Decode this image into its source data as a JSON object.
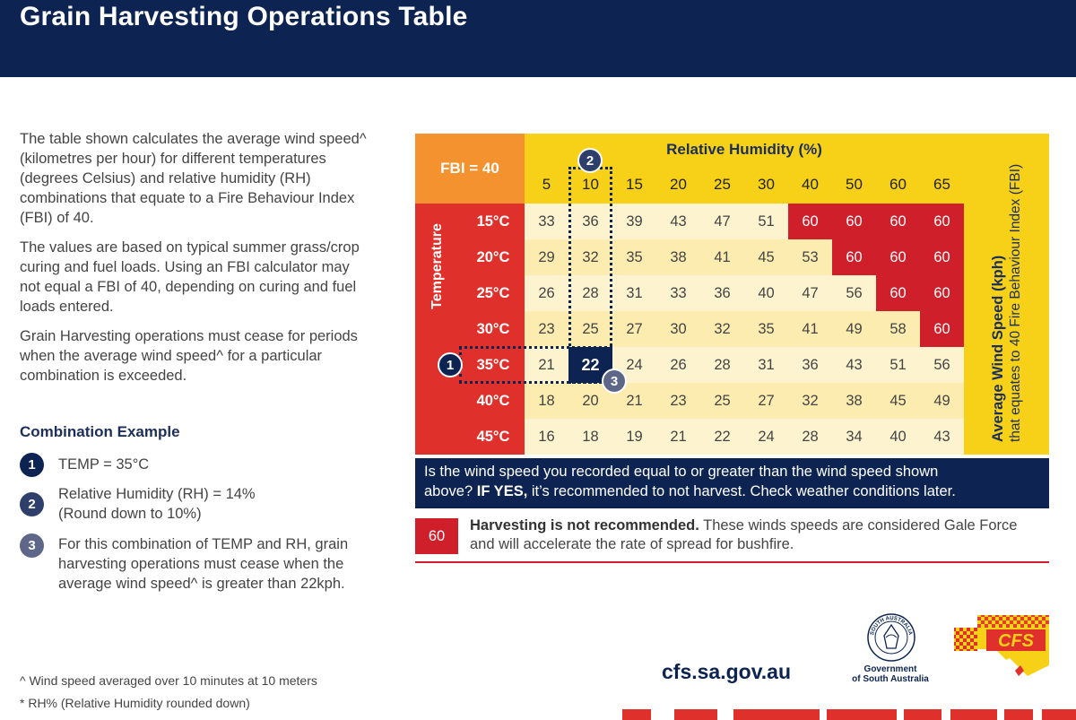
{
  "header": {
    "title": "Grain Harvesting Operations Table"
  },
  "intro": {
    "p1": "The table shown calculates the average wind speed^ (kilometres per hour) for different temperatures (degrees Celsius) and relative humidity (RH) combinations that equate to a Fire Behaviour Index (FBI) of 40.",
    "p2": "The values are based on typical summer grass/crop curing and fuel loads. Using an FBI calculator may not equal a FBI of 40, depending on curing and fuel loads entered.",
    "p3": "Grain Harvesting operations must cease for periods when the average wind speed^ for a particular combination is exceeded."
  },
  "combination": {
    "title": "Combination Example",
    "steps": [
      {
        "num": "1",
        "text": "TEMP = 35°C"
      },
      {
        "num": "2",
        "text": "Relative Humidity (RH) = 14% (Round down to 10%)"
      },
      {
        "num": "3",
        "text": "For this combination of TEMP and RH, grain harvesting operations must cease when the average wind speed^ is greater than 22kph."
      }
    ]
  },
  "footnotes": {
    "wind": "^ Wind speed averaged over 10 minutes at 10 meters",
    "rh": "* RH% (Relative Humidity rounded down)"
  },
  "table": {
    "fbi_label": "FBI = 40",
    "rh_title": "Relative Humidity (%)",
    "temp_title": "Temperature",
    "wind_title": "Average Wind Speed (kph)",
    "wind_subtitle": "that equates to 40 Fire Behaviour Index (FBI)",
    "rh_values": [
      "5",
      "10",
      "15",
      "20",
      "25",
      "30",
      "40",
      "50",
      "60",
      "65"
    ],
    "temperatures": [
      "15°C",
      "20°C",
      "25°C",
      "30°C",
      "35°C",
      "40°C",
      "45°C"
    ],
    "rows": [
      [
        "33",
        "36",
        "39",
        "43",
        "47",
        "51",
        "60",
        "60",
        "60",
        "60"
      ],
      [
        "29",
        "32",
        "35",
        "38",
        "41",
        "45",
        "53",
        "60",
        "60",
        "60"
      ],
      [
        "26",
        "28",
        "31",
        "33",
        "36",
        "40",
        "47",
        "56",
        "60",
        "60"
      ],
      [
        "23",
        "25",
        "27",
        "30",
        "32",
        "35",
        "41",
        "49",
        "58",
        "60"
      ],
      [
        "21",
        "22",
        "24",
        "26",
        "28",
        "31",
        "36",
        "43",
        "51",
        "56"
      ],
      [
        "18",
        "20",
        "21",
        "23",
        "25",
        "27",
        "32",
        "38",
        "45",
        "49"
      ],
      [
        "16",
        "18",
        "19",
        "21",
        "22",
        "24",
        "28",
        "34",
        "40",
        "43"
      ]
    ],
    "markers": [
      "1",
      "2",
      "3"
    ],
    "colors": {
      "gale": "#cf1f2b",
      "light": "#fdf3cf",
      "pale": "#fdecb0",
      "highlight": "#0d2452"
    }
  },
  "question": {
    "line1": "Is the wind speed you recorded equal to or greater than the wind speed shown",
    "line2_pre": "above?",
    "line2_bold": "IF YES,",
    "line2_post": "it’s recommended to not harvest. Check weather conditions later."
  },
  "legend": {
    "value": "60",
    "bold": "Harvesting is not recommended.",
    "text": "These winds speeds are considered Gale Force and will accelerate the rate of spread for bushfire."
  },
  "footer": {
    "url": "cfs.sa.gov.au",
    "govt_line1": "Government",
    "govt_line2": "of South Australia",
    "seal_text": "SOUTH AUSTRALIA",
    "cfs_logo": "CFS"
  }
}
